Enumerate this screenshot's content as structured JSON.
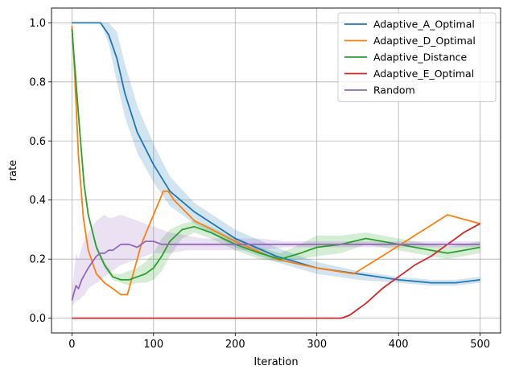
{
  "chart_data": {
    "type": "line",
    "title": "",
    "xlabel": "Iteration",
    "ylabel": "rate",
    "xlim": [
      -25,
      525
    ],
    "ylim": [
      -0.05,
      1.05
    ],
    "xticks": [
      0,
      100,
      200,
      300,
      400,
      500
    ],
    "xtick_labels": [
      "0",
      "100",
      "200",
      "300",
      "400",
      "500"
    ],
    "yticks": [
      0.0,
      0.2,
      0.4,
      0.6,
      0.8,
      1.0
    ],
    "ytick_labels": [
      "0.0",
      "0.2",
      "0.4",
      "0.6",
      "0.8",
      "1.0"
    ],
    "grid": true,
    "legend_position": "top-right",
    "series": [
      {
        "name": "Adaptive_A_Optimal",
        "color": "#1f77b4",
        "x": [
          0,
          35,
          45,
          55,
          65,
          80,
          100,
          120,
          150,
          200,
          250,
          300,
          350,
          400,
          440,
          470,
          500
        ],
        "y": [
          1.0,
          1.0,
          0.96,
          0.88,
          0.76,
          0.63,
          0.52,
          0.43,
          0.36,
          0.27,
          0.21,
          0.17,
          0.15,
          0.13,
          0.12,
          0.12,
          0.13
        ],
        "band_upper": [
          1.0,
          1.0,
          1.0,
          0.97,
          0.86,
          0.72,
          0.59,
          0.48,
          0.39,
          0.3,
          0.24,
          0.19,
          0.16,
          0.14,
          0.13,
          0.13,
          0.14
        ],
        "band_lower": [
          1.0,
          1.0,
          0.93,
          0.8,
          0.68,
          0.56,
          0.46,
          0.38,
          0.32,
          0.24,
          0.19,
          0.15,
          0.13,
          0.12,
          0.11,
          0.11,
          0.12
        ]
      },
      {
        "name": "Adaptive_D_Optimal",
        "color": "#ff7f0e",
        "x": [
          0,
          3,
          8,
          14,
          20,
          30,
          40,
          50,
          60,
          68,
          75,
          85,
          100,
          112,
          118,
          125,
          150,
          200,
          250,
          300,
          345,
          380,
          420,
          460,
          500
        ],
        "y": [
          0.99,
          0.85,
          0.55,
          0.34,
          0.23,
          0.15,
          0.12,
          0.1,
          0.08,
          0.08,
          0.15,
          0.25,
          0.35,
          0.43,
          0.43,
          0.4,
          0.33,
          0.26,
          0.2,
          0.17,
          0.15,
          0.21,
          0.28,
          0.35,
          0.32
        ]
      },
      {
        "name": "Adaptive_Distance",
        "color": "#2ca02c",
        "x": [
          0,
          5,
          10,
          15,
          20,
          30,
          40,
          50,
          60,
          70,
          80,
          90,
          100,
          110,
          120,
          135,
          150,
          170,
          200,
          230,
          255,
          280,
          300,
          330,
          360,
          400,
          440,
          460,
          480,
          500
        ],
        "y": [
          0.98,
          0.8,
          0.62,
          0.45,
          0.35,
          0.24,
          0.18,
          0.14,
          0.13,
          0.13,
          0.14,
          0.15,
          0.17,
          0.21,
          0.26,
          0.3,
          0.31,
          0.29,
          0.25,
          0.22,
          0.2,
          0.22,
          0.24,
          0.25,
          0.27,
          0.25,
          0.23,
          0.22,
          0.23,
          0.24
        ],
        "band_upper": [
          0.98,
          0.8,
          0.62,
          0.45,
          0.36,
          0.25,
          0.19,
          0.15,
          0.15,
          0.16,
          0.17,
          0.19,
          0.22,
          0.27,
          0.3,
          0.32,
          0.33,
          0.31,
          0.27,
          0.24,
          0.22,
          0.25,
          0.28,
          0.28,
          0.29,
          0.27,
          0.25,
          0.24,
          0.25,
          0.26
        ],
        "band_lower": [
          0.98,
          0.8,
          0.62,
          0.45,
          0.34,
          0.23,
          0.17,
          0.13,
          0.12,
          0.11,
          0.12,
          0.12,
          0.13,
          0.16,
          0.21,
          0.27,
          0.29,
          0.27,
          0.23,
          0.2,
          0.19,
          0.2,
          0.21,
          0.22,
          0.25,
          0.23,
          0.21,
          0.2,
          0.21,
          0.22
        ]
      },
      {
        "name": "Adaptive_E_Optimal",
        "color": "#d62728",
        "x": [
          0,
          330,
          340,
          360,
          380,
          400,
          420,
          440,
          460,
          480,
          500
        ],
        "y": [
          0.0,
          0.0,
          0.01,
          0.05,
          0.1,
          0.14,
          0.18,
          0.21,
          0.25,
          0.29,
          0.32
        ]
      },
      {
        "name": "Random",
        "color": "#9467bd",
        "x": [
          0,
          3,
          5,
          8,
          12,
          16,
          20,
          25,
          30,
          35,
          40,
          45,
          50,
          60,
          70,
          80,
          90,
          100,
          110,
          120,
          140,
          160,
          180,
          200,
          230,
          260,
          300,
          350,
          400,
          450,
          500
        ],
        "y": [
          0.06,
          0.09,
          0.11,
          0.1,
          0.13,
          0.15,
          0.17,
          0.19,
          0.21,
          0.22,
          0.22,
          0.23,
          0.23,
          0.25,
          0.25,
          0.24,
          0.26,
          0.26,
          0.25,
          0.25,
          0.25,
          0.25,
          0.25,
          0.25,
          0.25,
          0.25,
          0.25,
          0.25,
          0.25,
          0.25,
          0.25
        ],
        "band_upper": [
          0.1,
          0.16,
          0.22,
          0.2,
          0.24,
          0.27,
          0.29,
          0.31,
          0.33,
          0.34,
          0.35,
          0.34,
          0.34,
          0.35,
          0.34,
          0.33,
          0.32,
          0.31,
          0.3,
          0.29,
          0.28,
          0.27,
          0.27,
          0.27,
          0.27,
          0.26,
          0.26,
          0.26,
          0.26,
          0.26,
          0.26
        ],
        "band_lower": [
          0.04,
          0.05,
          0.06,
          0.06,
          0.07,
          0.08,
          0.1,
          0.11,
          0.12,
          0.13,
          0.14,
          0.15,
          0.16,
          0.18,
          0.19,
          0.2,
          0.21,
          0.22,
          0.22,
          0.22,
          0.23,
          0.23,
          0.23,
          0.23,
          0.23,
          0.24,
          0.24,
          0.24,
          0.24,
          0.24,
          0.24
        ]
      }
    ]
  }
}
